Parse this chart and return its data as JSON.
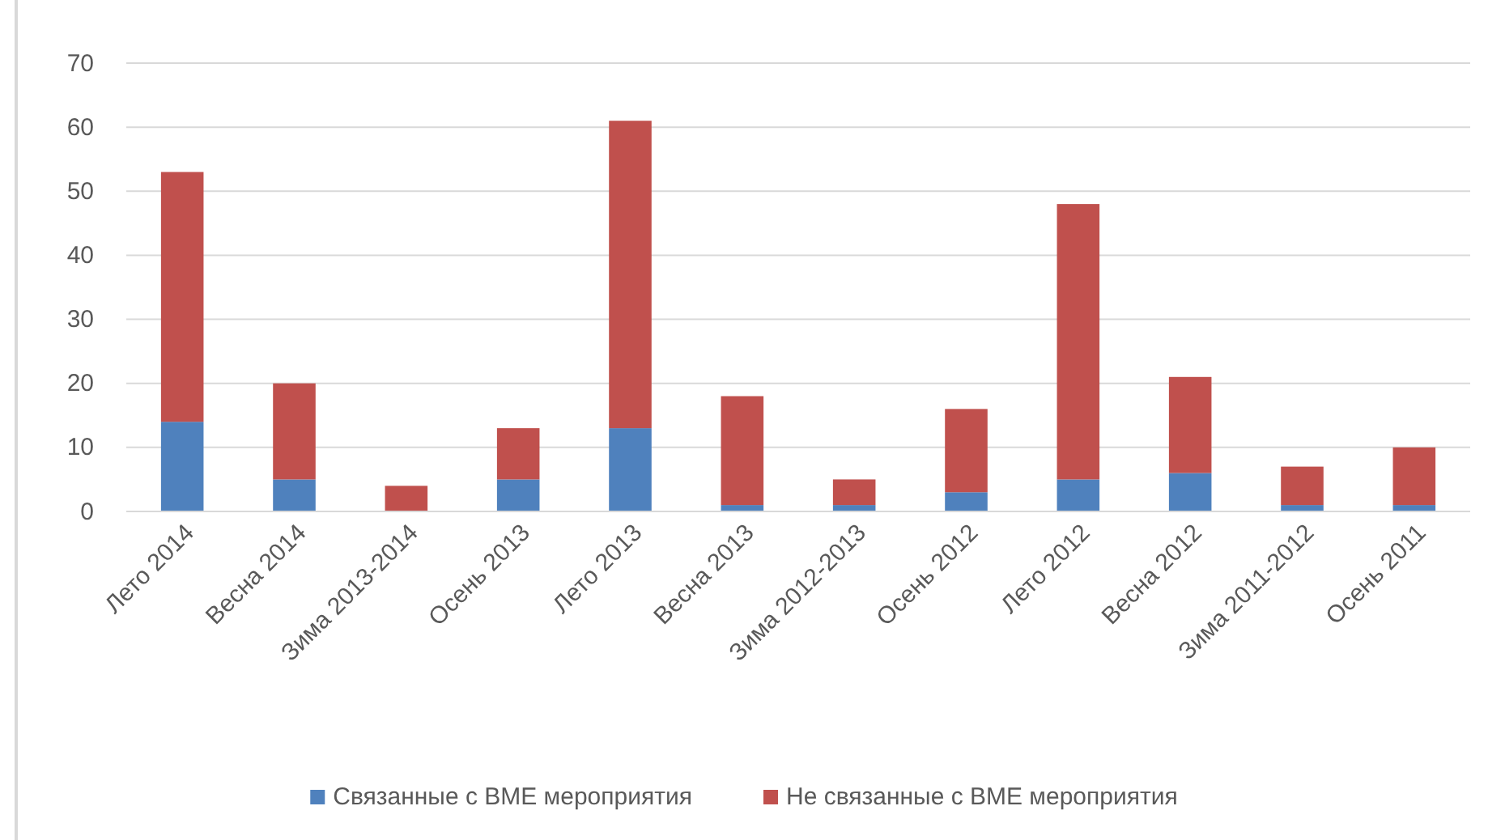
{
  "chart_data": {
    "type": "bar",
    "stacked": true,
    "categories": [
      "Лето 2014",
      "Весна 2014",
      "Зима 2013-2014",
      "Осень 2013",
      "Лето 2013",
      "Весна 2013",
      "Зима 2012-2013",
      "Осень 2012",
      "Лето 2012",
      "Весна 2012",
      "Зима 2011-2012",
      "Осень 2011"
    ],
    "series": [
      {
        "name": "Связанные с ВМЕ мероприятия",
        "color": "#4f81bd",
        "values": [
          14,
          5,
          0,
          5,
          13,
          1,
          1,
          3,
          5,
          6,
          1,
          1
        ]
      },
      {
        "name": "Не связанные с ВМЕ мероприятия",
        "color": "#c0504d",
        "values": [
          39,
          15,
          4,
          8,
          48,
          17,
          4,
          13,
          43,
          15,
          6,
          9
        ]
      }
    ],
    "ylim": [
      0,
      70
    ],
    "yticks": [
      0,
      10,
      20,
      30,
      40,
      50,
      60,
      70
    ],
    "grid": "y",
    "legend": "bottom"
  }
}
